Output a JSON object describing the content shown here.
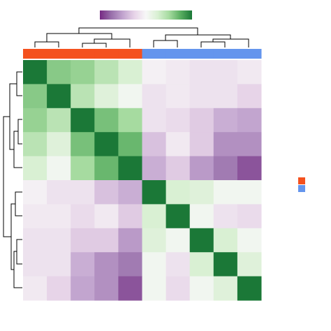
{
  "chart_data": {
    "type": "heatmap",
    "values": [
      [
        1,
        0.6,
        0.55,
        0.4,
        0.25,
        -0.05,
        -0.1,
        -0.15,
        -0.15,
        -0.1
      ],
      [
        0.6,
        1,
        0.4,
        0.2,
        0.05,
        -0.15,
        -0.1,
        -0.15,
        -0.15,
        -0.25
      ],
      [
        0.55,
        0.4,
        1,
        0.65,
        0.5,
        -0.15,
        -0.2,
        -0.3,
        -0.45,
        -0.5
      ],
      [
        0.4,
        0.2,
        0.65,
        1,
        0.7,
        -0.35,
        -0.1,
        -0.3,
        -0.6,
        -0.6
      ],
      [
        0.25,
        0.05,
        0.5,
        0.7,
        1,
        -0.45,
        -0.3,
        -0.55,
        -0.7,
        -0.85
      ],
      [
        -0.05,
        -0.15,
        -0.15,
        -0.35,
        -0.45,
        1,
        0.25,
        0.2,
        0.05,
        0.05
      ],
      [
        -0.1,
        -0.1,
        -0.2,
        -0.1,
        -0.3,
        0.25,
        1,
        0.05,
        -0.15,
        -0.2
      ],
      [
        -0.15,
        -0.15,
        -0.3,
        -0.3,
        -0.55,
        0.2,
        0.05,
        1,
        0.25,
        0.05
      ],
      [
        -0.15,
        -0.15,
        -0.45,
        -0.6,
        -0.7,
        0.05,
        -0.15,
        0.25,
        1,
        0.2
      ],
      [
        -0.1,
        -0.25,
        -0.5,
        -0.6,
        -0.85,
        0.05,
        -0.2,
        0.05,
        0.2,
        1
      ]
    ],
    "zlim": [
      -1,
      1
    ],
    "colormap": [
      "#762a83",
      "#9970ab",
      "#c2a5cf",
      "#e7d4e8",
      "#f7f7f7",
      "#d9f0d3",
      "#a6dba0",
      "#5aae61",
      "#1b7837"
    ],
    "col_colors": [
      "#f4511e",
      "#f4511e",
      "#f4511e",
      "#f4511e",
      "#f4511e",
      "#6495ed",
      "#6495ed",
      "#6495ed",
      "#6495ed",
      "#6495ed"
    ],
    "legend_colors": [
      "#f4511e",
      "#6495ed"
    ]
  }
}
